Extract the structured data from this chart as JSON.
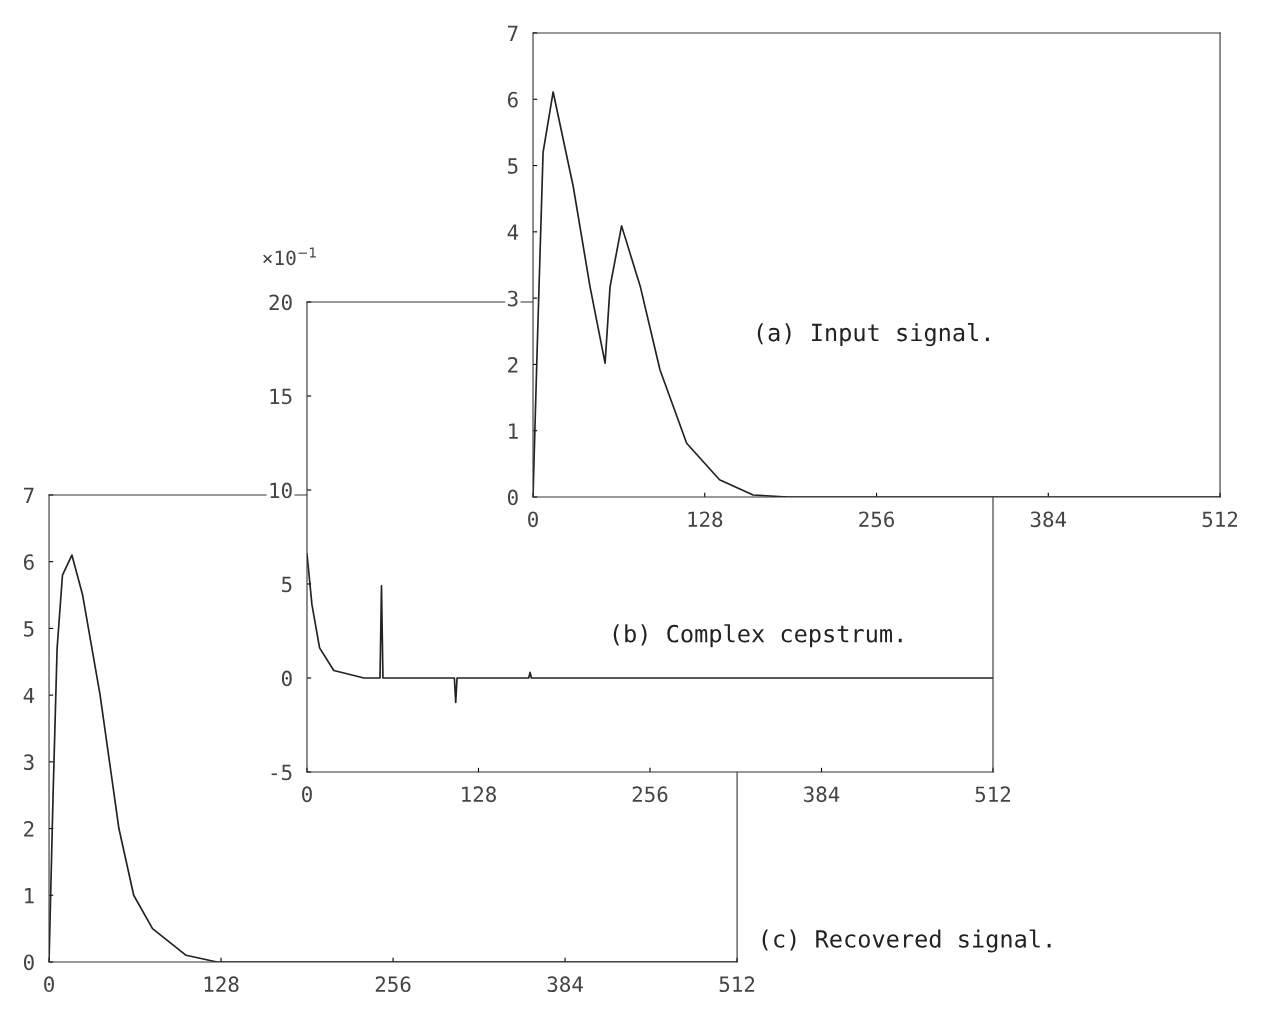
{
  "chart_data": [
    {
      "type": "line",
      "title": "(a) Input signal.",
      "xlim": [
        0,
        512
      ],
      "xticks": [
        0,
        128,
        256,
        384,
        512
      ],
      "ylim": [
        0,
        7
      ],
      "yticks": [
        0,
        1,
        2,
        3,
        4,
        5,
        6,
        7
      ],
      "series": [
        {
          "color": "#222222",
          "x": [
            0,
            3,
            7.5,
            15,
            30,
            42.5,
            53.7,
            57.4,
            66,
            80,
            94.6,
            114.5,
            139,
            164,
            190,
            512
          ],
          "values": [
            0,
            2.17,
            5.2,
            6.11,
            4.68,
            3.17,
            2.02,
            3.17,
            4.09,
            3.17,
            1.92,
            0.81,
            0.26,
            0.03,
            0,
            0
          ]
        }
      ]
    },
    {
      "type": "line",
      "title": "(b) Complex cepstrum.",
      "ylabel": "×10$^{−1}$",
      "xlim": [
        0,
        512
      ],
      "xticks": [
        0,
        128,
        256,
        384,
        512
      ],
      "ylim": [
        -5,
        20
      ],
      "yticks": [
        -5,
        0,
        5,
        10,
        15,
        20
      ],
      "series": [
        {
          "color": "#222222",
          "x": [
            0,
            3.7,
            9.4,
            20,
            42.5,
            54.5,
            55.6,
            56.7,
            110,
            111,
            112,
            165.5,
            166.5,
            167.5,
            512
          ],
          "values": [
            6.6,
            3.9,
            1.6,
            0.4,
            0,
            0,
            4.9,
            0,
            0,
            -1.3,
            0,
            0,
            0.3,
            0,
            0
          ]
        }
      ]
    },
    {
      "type": "line",
      "title": "(c) Recovered signal.",
      "xlim": [
        0,
        512
      ],
      "xticks": [
        0,
        128,
        256,
        384,
        512
      ],
      "ylim": [
        0,
        7
      ],
      "yticks": [
        0,
        1,
        2,
        3,
        4,
        5,
        6,
        7
      ],
      "series": [
        {
          "color": "#222222",
          "x": [
            0,
            3,
            6,
            10,
            17,
            25,
            38,
            45,
            52,
            63,
            77,
            102,
            125,
            512
          ],
          "values": [
            0,
            2.5,
            4.7,
            5.8,
            6.1,
            5.5,
            4,
            3,
            2,
            1,
            0.5,
            0.1,
            0,
            0
          ]
        }
      ]
    }
  ]
}
